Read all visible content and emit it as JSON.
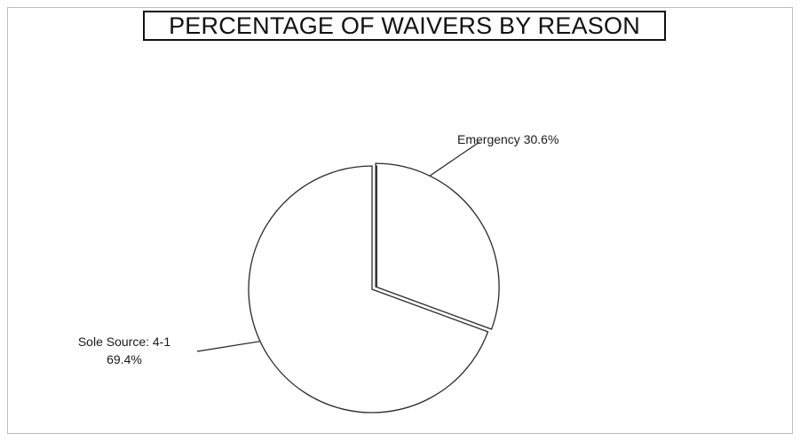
{
  "chart_data": {
    "type": "pie",
    "title": "PERCENTAGE OF WAIVERS BY REASON",
    "categories": [
      "Emergency",
      "Sole Source: 4-1"
    ],
    "values": [
      30.6,
      69.4
    ],
    "unit": "%",
    "exploded": [
      "Emergency"
    ],
    "labels": [
      {
        "lines": [
          "Emergency 30.6%"
        ]
      },
      {
        "lines": [
          "Sole Source: 4-1",
          "69.4%"
        ]
      }
    ],
    "legend": "none",
    "grid": false,
    "colors": {
      "slice_fill": "#ffffff",
      "outline": "#2a2a2a",
      "frame": "#bdbdbd"
    }
  }
}
